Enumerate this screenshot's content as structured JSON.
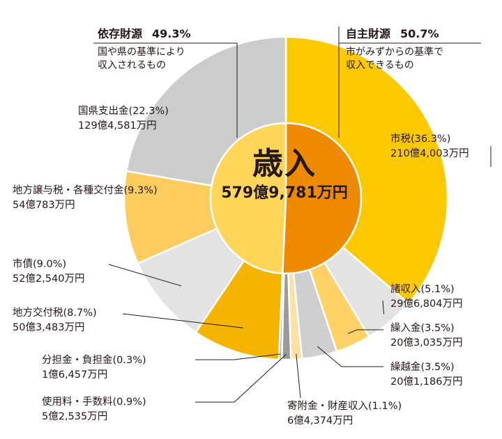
{
  "chart_data": {
    "type": "pie",
    "variant": "nested-donut",
    "title": "歳入",
    "total": "579億9,781万円",
    "groups": [
      {
        "name": "自主財源",
        "percent": 50.7,
        "percent_label": "50.7%",
        "description": [
          "市がみずからの基準で",
          "収入できるもの"
        ],
        "color": "#ee8a00"
      },
      {
        "name": "依存財源",
        "percent": 49.3,
        "percent_label": "49.3%",
        "description": [
          "国や県の基準により",
          "収入されるもの"
        ],
        "color": "#ffd659"
      }
    ],
    "slices": [
      {
        "name": "市税",
        "percent": 36.3,
        "label": "市税(36.3%)",
        "amount": "210億4,003万円",
        "group": "自主財源",
        "color": "#fcc800"
      },
      {
        "name": "諸収入",
        "percent": 5.1,
        "label": "諸収入(5.1%)",
        "amount": "29億6,804万円",
        "group": "自主財源",
        "color": "#e3e3e3"
      },
      {
        "name": "繰入金",
        "percent": 3.5,
        "label": "繰入金(3.5%)",
        "amount": "20億3,035万円",
        "group": "自主財源",
        "color": "#fdd165"
      },
      {
        "name": "繰越金",
        "percent": 3.5,
        "label": "繰越金(3.5%)",
        "amount": "20億1,186万円",
        "group": "自主財源",
        "color": "#cfcfcf"
      },
      {
        "name": "寄附金・財産収入",
        "percent": 1.1,
        "label": "寄附金・財産収入(1.1%)",
        "amount": "6億4,374万円",
        "group": "自主財源",
        "color": "#fce1a2"
      },
      {
        "name": "使用料・手数料",
        "percent": 0.9,
        "label": "使用料・手数料(0.9%)",
        "amount": "5億2,535万円",
        "group": "自主財源",
        "color": "#9a9a9a"
      },
      {
        "name": "分担金・負担金",
        "percent": 0.3,
        "label": "分担金・負担金(0.3%)",
        "amount": "1億6,457万円",
        "group": "自主財源",
        "color": "#b5b5b5"
      },
      {
        "name": "地方交付税",
        "percent": 8.7,
        "label": "地方交付税(8.7%)",
        "amount": "50億3,483万円",
        "group": "依存財源",
        "color": "#f5b400"
      },
      {
        "name": "市債",
        "percent": 9.0,
        "label": "市債(9.0%)",
        "amount": "52億2,540万円",
        "group": "依存財源",
        "color": "#e3e3e3"
      },
      {
        "name": "地方譲与税・各種交付金",
        "percent": 9.3,
        "label": "地方譲与税・各種交付金(9.3%)",
        "amount": "54億783万円",
        "group": "依存財源",
        "color": "#fdcc5e"
      },
      {
        "name": "国県支出金",
        "percent": 22.3,
        "label": "国県支出金(22.3%)",
        "amount": "129億4,581万円",
        "group": "依存財源",
        "color": "#cccccc"
      }
    ]
  }
}
